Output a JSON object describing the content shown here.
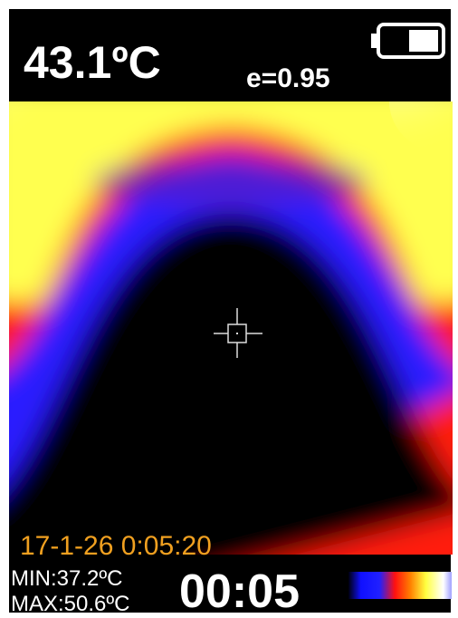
{
  "header": {
    "temperature": "43.1ºC",
    "emissivity": "e=0.95"
  },
  "footer": {
    "timestamp": "17-1-26 0:05:20",
    "min": "MIN:37.2ºC",
    "max": "MAX:50.6ºC",
    "timer": "00:05"
  }
}
